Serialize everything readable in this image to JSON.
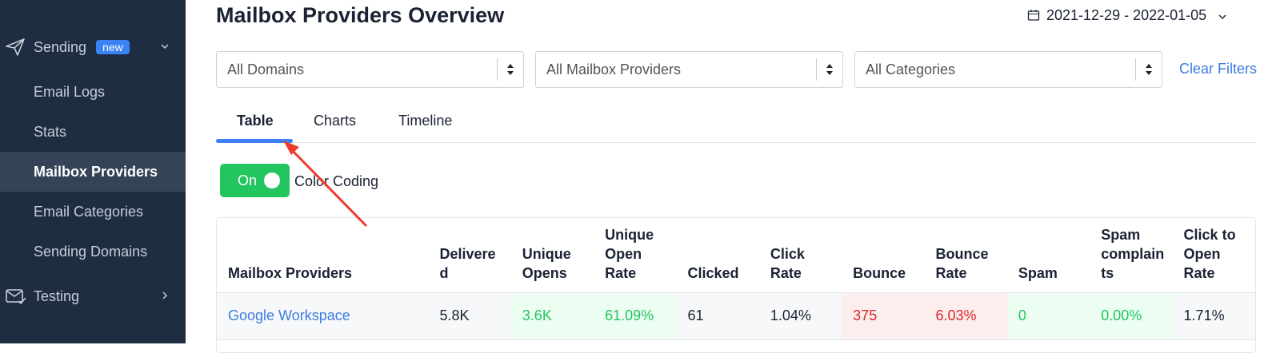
{
  "sidebar": {
    "items": [
      {
        "label": "Sending",
        "badge": "new"
      },
      {
        "label": "Email Logs"
      },
      {
        "label": "Stats"
      },
      {
        "label": "Mailbox Providers"
      },
      {
        "label": "Email Categories"
      },
      {
        "label": "Sending Domains"
      },
      {
        "label": "Testing"
      }
    ]
  },
  "header": {
    "title": "Mailbox Providers Overview",
    "date_range": "2021-12-29 - 2022-01-05"
  },
  "filters": {
    "selects": [
      "All Domains",
      "All Mailbox Providers",
      "All Categories"
    ],
    "clear": "Clear Filters"
  },
  "tabs": [
    "Table",
    "Charts",
    "Timeline"
  ],
  "toggle": {
    "state": "On",
    "label": "Color Coding"
  },
  "table": {
    "columns": [
      "Mailbox Providers",
      "Delivered",
      "Unique Opens",
      "Unique Open Rate",
      "Clicked",
      "Click Rate",
      "Bounce",
      "Bounce Rate",
      "Spam",
      "Spam complaints",
      "Click to Open Rate"
    ],
    "rows": [
      [
        "Google Workspace",
        "5.8K",
        "3.6K",
        "61.09%",
        "61",
        "1.04%",
        "375",
        "6.03%",
        "0",
        "0.00%",
        "1.71%"
      ]
    ]
  }
}
